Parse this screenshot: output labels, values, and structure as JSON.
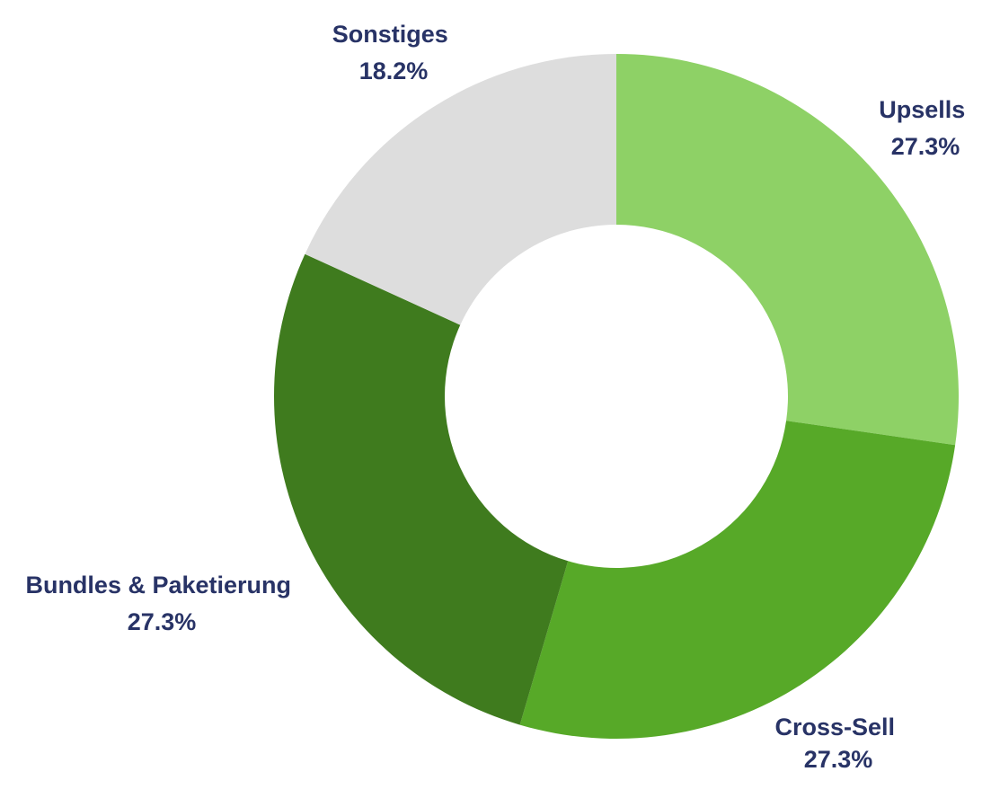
{
  "chart_data": {
    "type": "pie",
    "title": "",
    "donut": true,
    "slices": [
      {
        "label": "Upsells",
        "value": 27.3,
        "display": "27.3%",
        "color": "#8ed166"
      },
      {
        "label": "Cross-Sell",
        "value": 27.3,
        "display": "27.3%",
        "color": "#57a928"
      },
      {
        "label": "Bundles & Paketierung",
        "value": 27.3,
        "display": "27.3%",
        "color": "#3f7b1e"
      },
      {
        "label": "Sonstiges",
        "value": 18.2,
        "display": "18.2%",
        "color": "#dddddd"
      }
    ],
    "label_color": "#283366",
    "legend": "none"
  }
}
